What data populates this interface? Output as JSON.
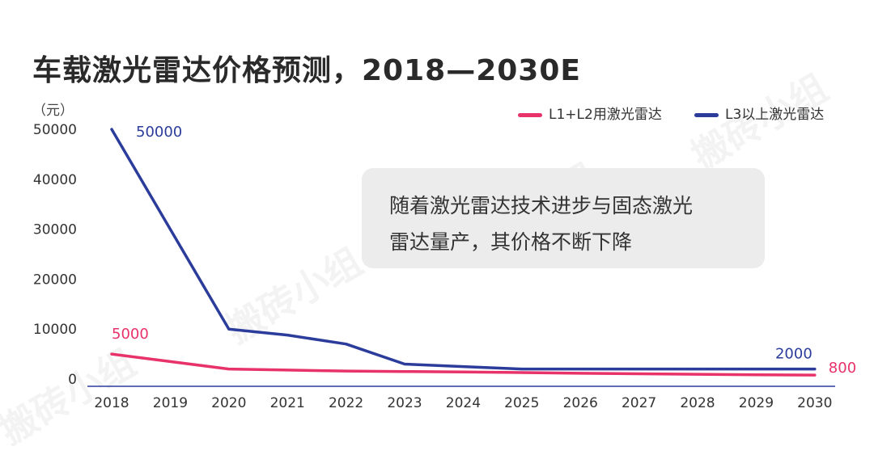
{
  "watermark": "搬砖小组",
  "colors": {
    "l12": "#e8326a",
    "l3": "#2b3c9b",
    "axis": "#2b3c9b",
    "tick_text": "#333333"
  },
  "chart_data": {
    "type": "line",
    "title": "车载激光雷达价格预测，2018—2030E",
    "ylabel": "（元）",
    "xlabel": "",
    "x": [
      "2018",
      "2019",
      "2020",
      "2021",
      "2022",
      "2023",
      "2024",
      "2025",
      "2026",
      "2027",
      "2028",
      "2029",
      "2030"
    ],
    "yticks": [
      "50000",
      "40000",
      "30000",
      "20000",
      "10000",
      "0"
    ],
    "ylim": [
      0,
      50000
    ],
    "grid": false,
    "legend_position": "top-right",
    "series": [
      {
        "name": "L1+L2用激光雷达",
        "color": "#e8326a",
        "values": [
          5000,
          3500,
          2000,
          1800,
          1600,
          1500,
          1400,
          1300,
          1150,
          1050,
          950,
          850,
          800
        ],
        "labels": [
          {
            "index": 0,
            "text": "5000"
          },
          {
            "index": 12,
            "text": "800"
          }
        ]
      },
      {
        "name": "L3以上激光雷达",
        "color": "#2b3c9b",
        "values": [
          50000,
          30000,
          10000,
          8800,
          7000,
          3000,
          2500,
          2000,
          2000,
          2000,
          2000,
          2000,
          2000
        ],
        "labels": [
          {
            "index": 0,
            "text": "50000"
          },
          {
            "index": 12,
            "text": "2000"
          }
        ]
      }
    ],
    "annotation": [
      "随着激光雷达技术进步与固态激光",
      "雷达量产，其价格不断下降"
    ]
  }
}
